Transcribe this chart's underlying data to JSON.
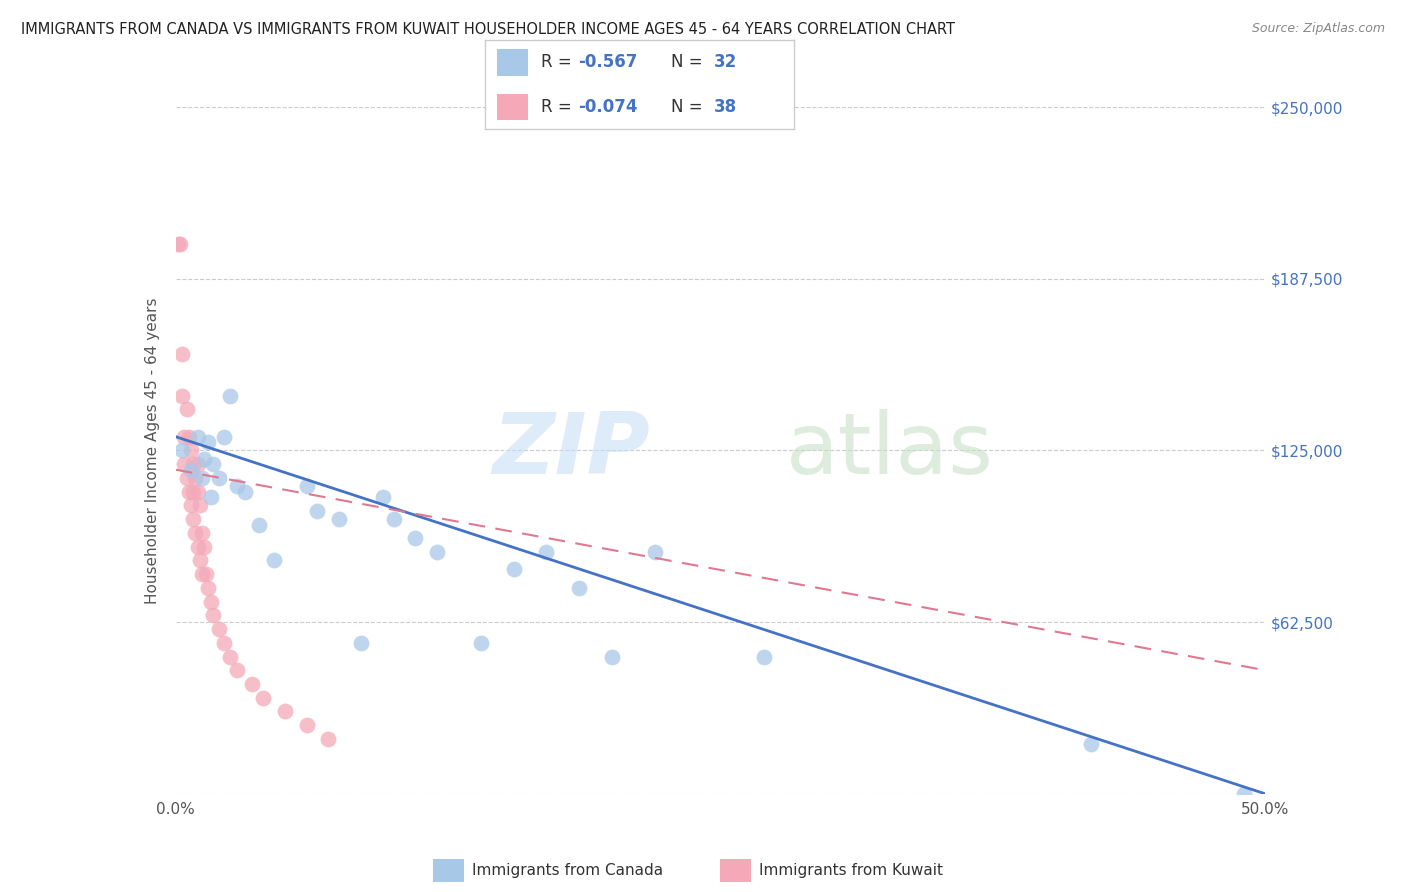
{
  "title": "IMMIGRANTS FROM CANADA VS IMMIGRANTS FROM KUWAIT HOUSEHOLDER INCOME AGES 45 - 64 YEARS CORRELATION CHART",
  "source": "Source: ZipAtlas.com",
  "ylabel": "Householder Income Ages 45 - 64 years",
  "xlim": [
    0.0,
    0.5
  ],
  "ylim": [
    0,
    250000
  ],
  "canada_R": -0.567,
  "canada_N": 32,
  "kuwait_R": -0.074,
  "kuwait_N": 38,
  "canada_color": "#a8c8e8",
  "kuwait_color": "#f4a8b8",
  "canada_line_color": "#4472c4",
  "kuwait_line_color": "#e07890",
  "canada_x": [
    0.003,
    0.007,
    0.01,
    0.012,
    0.013,
    0.015,
    0.016,
    0.017,
    0.02,
    0.022,
    0.025,
    0.028,
    0.032,
    0.038,
    0.045,
    0.06,
    0.065,
    0.075,
    0.085,
    0.095,
    0.1,
    0.11,
    0.12,
    0.14,
    0.155,
    0.17,
    0.185,
    0.2,
    0.22,
    0.27,
    0.42,
    0.49
  ],
  "canada_y": [
    125000,
    118000,
    130000,
    115000,
    122000,
    128000,
    108000,
    120000,
    115000,
    130000,
    145000,
    112000,
    110000,
    98000,
    85000,
    112000,
    103000,
    100000,
    55000,
    108000,
    100000,
    93000,
    88000,
    55000,
    82000,
    88000,
    75000,
    50000,
    88000,
    50000,
    18000,
    0
  ],
  "kuwait_x": [
    0.001,
    0.002,
    0.003,
    0.003,
    0.004,
    0.004,
    0.005,
    0.005,
    0.006,
    0.006,
    0.007,
    0.007,
    0.008,
    0.008,
    0.008,
    0.009,
    0.009,
    0.01,
    0.01,
    0.01,
    0.011,
    0.011,
    0.012,
    0.012,
    0.013,
    0.014,
    0.015,
    0.016,
    0.017,
    0.02,
    0.022,
    0.025,
    0.028,
    0.035,
    0.04,
    0.05,
    0.06,
    0.07
  ],
  "kuwait_y": [
    200000,
    200000,
    160000,
    145000,
    130000,
    120000,
    140000,
    115000,
    110000,
    130000,
    125000,
    105000,
    120000,
    110000,
    100000,
    115000,
    95000,
    120000,
    110000,
    90000,
    105000,
    85000,
    95000,
    80000,
    90000,
    80000,
    75000,
    70000,
    65000,
    60000,
    55000,
    50000,
    45000,
    40000,
    35000,
    30000,
    25000,
    20000
  ]
}
